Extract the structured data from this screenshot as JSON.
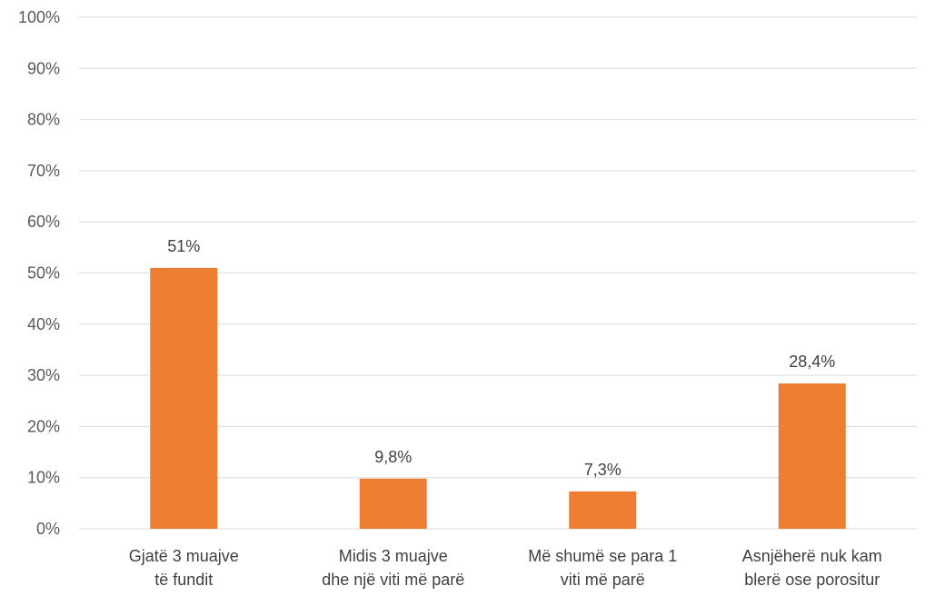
{
  "chart_data": {
    "type": "bar",
    "categories": [
      [
        "Gjatë 3 muajve",
        "të fundit"
      ],
      [
        "Midis 3 muajve",
        "dhe një viti më parë"
      ],
      [
        "Më shumë se para  1",
        "viti më parë"
      ],
      [
        "Asnjëherë nuk kam",
        "blerë ose porositur"
      ]
    ],
    "values": [
      51,
      9.8,
      7.3,
      28.4
    ],
    "data_labels": [
      "51%",
      "9,8%",
      "7,3%",
      "28,4%"
    ],
    "yticks": [
      "0%",
      "10%",
      "20%",
      "30%",
      "40%",
      "50%",
      "60%",
      "70%",
      "80%",
      "90%",
      "100%"
    ],
    "ylim": [
      0,
      100
    ],
    "grid": true,
    "bar_color": "#ED7D31",
    "grid_color": "#D9D9D9"
  }
}
